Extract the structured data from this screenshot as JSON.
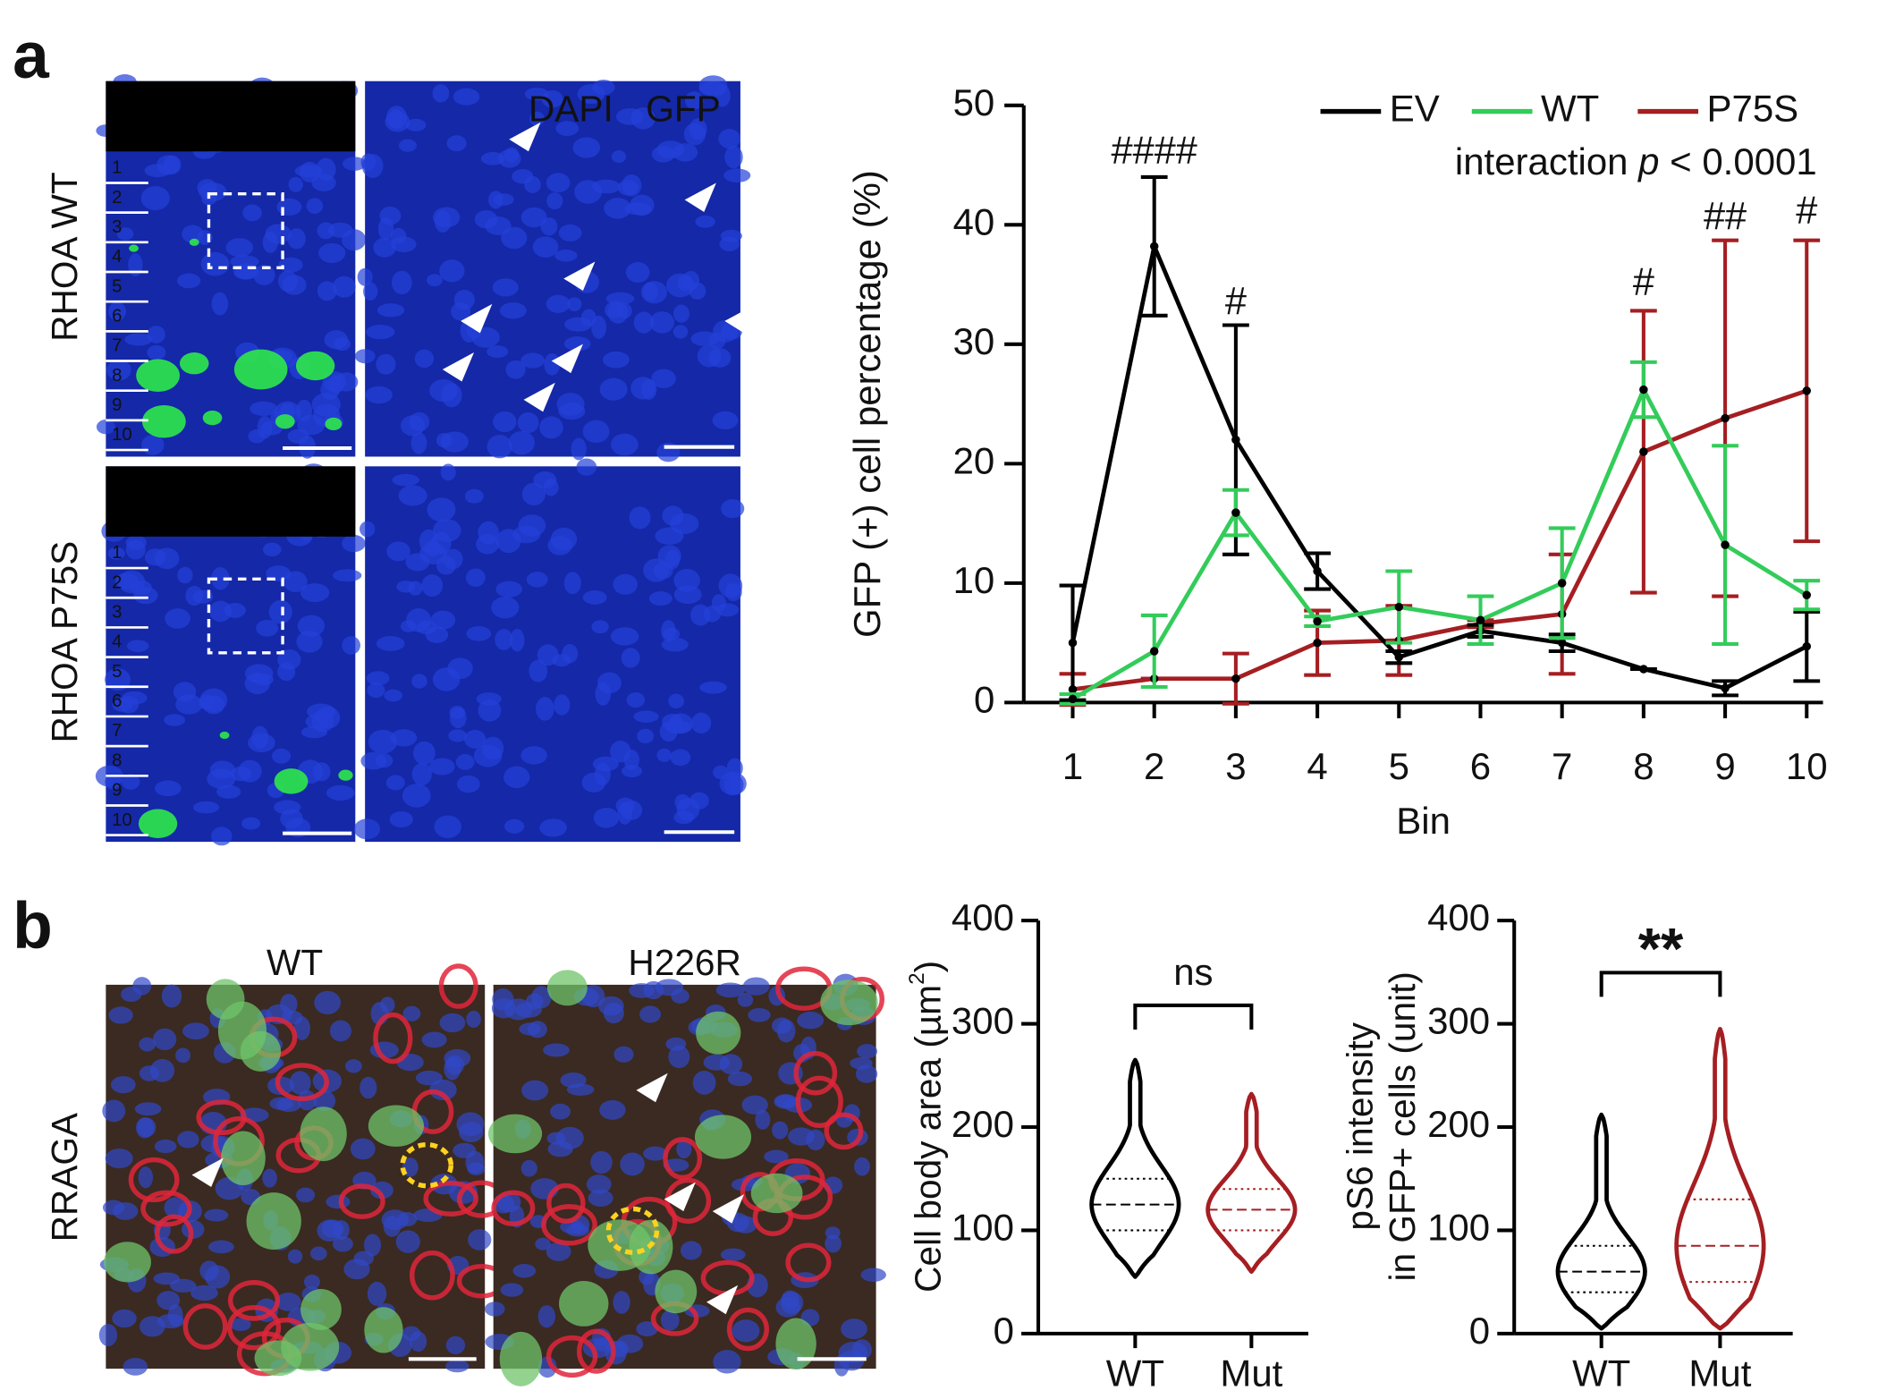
{
  "panel_a": {
    "label": "a",
    "rows": [
      "RHOA WT",
      "RHOA P75S"
    ],
    "bins": [
      "1",
      "2",
      "3",
      "4",
      "5",
      "6",
      "7",
      "8",
      "9",
      "10"
    ],
    "stain_labels": [
      "DAPI",
      "GFP"
    ]
  },
  "panel_b": {
    "label": "b",
    "columns": [
      "WT",
      "H226R"
    ],
    "row": "RRAGA"
  },
  "chart_data": [
    {
      "type": "line",
      "y_label": "GFP (+) cell percentage (%)",
      "x_label": "Bin",
      "x": [
        1,
        2,
        3,
        4,
        5,
        6,
        7,
        8,
        9,
        10
      ],
      "xlim": [
        0.4,
        10.2
      ],
      "xticks": [
        1,
        2,
        3,
        4,
        5,
        6,
        7,
        8,
        9,
        10
      ],
      "ylim": [
        0,
        50
      ],
      "yticks": [
        0,
        10,
        20,
        30,
        40,
        50
      ],
      "legend": "top-right",
      "note": [
        "interaction ",
        "p",
        " < 0.0001"
      ],
      "series": [
        {
          "name": "EV",
          "color": "#000000",
          "values": [
            5,
            38.2,
            22,
            11,
            3.8,
            6,
            5,
            2.8,
            1.2,
            4.7
          ],
          "errors": [
            4.8,
            5.8,
            9.6,
            1.5,
            0.5,
            0.5,
            0.7,
            0,
            0.6,
            2.9
          ]
        },
        {
          "name": "WT",
          "color": "#33cc5a",
          "values": [
            0.3,
            4.3,
            15.9,
            6.8,
            8,
            6.9,
            10,
            26.2,
            13.2,
            9
          ],
          "errors": [
            0.4,
            3,
            1.9,
            0.4,
            3,
            2,
            4.6,
            2.3,
            8.3,
            1.2
          ]
        },
        {
          "name": "P75S",
          "color": "#a51e22",
          "values": [
            1.1,
            2,
            2,
            5,
            5.2,
            6.6,
            7.4,
            21,
            23.8,
            26.1
          ],
          "errors": [
            1.3,
            0,
            2.1,
            2.7,
            2.9,
            0.3,
            5,
            11.8,
            14.9,
            12.6
          ]
        }
      ],
      "annotations": [
        {
          "x": 2,
          "y": 46,
          "label": "####"
        },
        {
          "x": 3,
          "y": 33.4,
          "label": "#"
        },
        {
          "x": 8,
          "y": 35,
          "label": "#"
        },
        {
          "x": 9,
          "y": 40.5,
          "label": "##"
        },
        {
          "x": 10,
          "y": 41,
          "label": "#"
        }
      ]
    },
    {
      "type": "violin",
      "y_label": [
        "Cell body area (µm",
        "2",
        ")"
      ],
      "categories": [
        "WT",
        "Mut"
      ],
      "ylim": [
        0,
        400
      ],
      "yticks": [
        0,
        100,
        200,
        300,
        400
      ],
      "significance": "ns",
      "groups": [
        {
          "color": "#000000",
          "min": 55,
          "q1": 100,
          "median": 125,
          "q3": 150,
          "max": 265
        },
        {
          "color": "#a51e22",
          "min": 60,
          "q1": 100,
          "median": 120,
          "q3": 140,
          "max": 232
        }
      ]
    },
    {
      "type": "violin",
      "y_label": [
        "pS6 intensity",
        "in GFP+ cells (unit)"
      ],
      "categories": [
        "WT",
        "Mut"
      ],
      "ylim": [
        0,
        400
      ],
      "yticks": [
        0,
        100,
        200,
        300,
        400
      ],
      "significance": "**",
      "groups": [
        {
          "color": "#000000",
          "min": 5,
          "q1": 40,
          "median": 60,
          "q3": 85,
          "max": 212
        },
        {
          "color": "#a51e22",
          "min": 5,
          "q1": 50,
          "median": 85,
          "q3": 130,
          "max": 295
        }
      ]
    }
  ]
}
